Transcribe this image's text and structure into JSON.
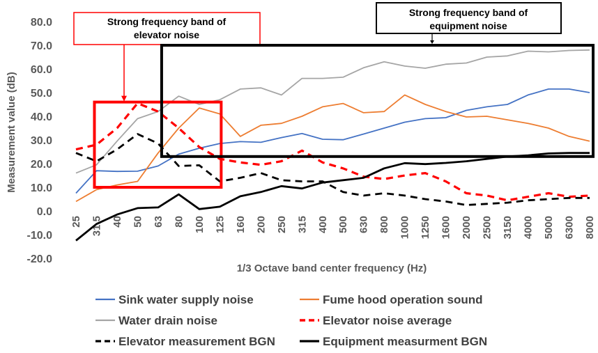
{
  "chart_data": {
    "type": "line",
    "title": "",
    "xlabel": "1/3 Octave band center frequency (Hz)",
    "ylabel": "Measurement value (dB)",
    "ylim": [
      -20,
      80
    ],
    "yticks": [
      "-20.0",
      "-10.0",
      "0.0",
      "10.0",
      "20.0",
      "30.0",
      "40.0",
      "50.0",
      "60.0",
      "70.0",
      "80.0"
    ],
    "categories": [
      "25",
      "31.5",
      "40",
      "50",
      "63",
      "80",
      "100",
      "125",
      "160",
      "200",
      "250",
      "315",
      "400",
      "500",
      "630",
      "800",
      "1000",
      "1250",
      "1600",
      "2000",
      "2500",
      "3150",
      "4000",
      "5000",
      "6300",
      "8000"
    ],
    "series": [
      {
        "name": "Sink water supply noise",
        "color": "#4472C4",
        "style": "solid",
        "values": [
          7.5,
          17,
          16.7,
          16.8,
          19,
          24,
          26.5,
          28.5,
          29.3,
          29,
          31,
          32.7,
          30.3,
          30.1,
          32.5,
          35,
          37.5,
          39,
          39.4,
          42.5,
          44,
          45,
          49,
          51.5,
          51.5,
          50
        ]
      },
      {
        "name": "Fume hood operation sound",
        "color": "#ED7D31",
        "style": "solid",
        "values": [
          4,
          9,
          11,
          12.5,
          24.5,
          35,
          43.5,
          41,
          31.5,
          36.2,
          37,
          40,
          44,
          45.4,
          41.5,
          42,
          49,
          45,
          42,
          39.7,
          40,
          38.5,
          37,
          35,
          31.5,
          29.5
        ]
      },
      {
        "name": "Water drain noise",
        "color": "#A5A5A5",
        "style": "solid",
        "values": [
          16,
          19.5,
          29.5,
          39,
          42,
          48.5,
          45,
          47,
          51.5,
          52,
          49,
          56,
          56,
          56.5,
          60.5,
          63,
          61.2,
          60.3,
          62,
          62.5,
          65,
          65.5,
          67.5,
          67.2,
          67.8,
          68
        ]
      },
      {
        "name": "Elevator noise average",
        "color": "#FF0000",
        "style": "dash-thick",
        "values": [
          26,
          28,
          35,
          45.5,
          42,
          35,
          27,
          22,
          20.5,
          19.5,
          21,
          25.5,
          20.5,
          18,
          14.5,
          13.5,
          15,
          16,
          12.5,
          7.5,
          6.5,
          4.5,
          6,
          7.5,
          6,
          6.5
        ]
      },
      {
        "name": "Elevator measurement BGN",
        "color": "#000000",
        "style": "dash",
        "values": [
          24.5,
          21,
          26,
          32.5,
          28.5,
          19,
          19.3,
          12.5,
          14,
          16,
          13,
          12.5,
          12.5,
          8,
          6.5,
          7.5,
          6.5,
          5,
          4,
          2.5,
          3,
          3.5,
          4.5,
          5,
          5.5,
          5.5
        ]
      },
      {
        "name": "Equipment measurment BGN",
        "color": "#000000",
        "style": "solid-thick",
        "values": [
          -12.5,
          -5.5,
          -1.5,
          1.2,
          1.5,
          7,
          0.8,
          1.8,
          6.2,
          8,
          10.5,
          9.5,
          12,
          13,
          14,
          18,
          20.2,
          19.8,
          20.3,
          21,
          22,
          23,
          23.5,
          24.3,
          24.5,
          24.5
        ]
      }
    ],
    "annotations": [
      {
        "text": [
          "Strong frequency band of",
          "elevator noise"
        ],
        "color": "#FF0000",
        "x_range": [
          "31.5",
          "125"
        ],
        "y_range": [
          10,
          46
        ]
      },
      {
        "text": [
          "Strong frequency band of",
          "equipment noise"
        ],
        "color": "#000000",
        "x_range": [
          "63",
          "8000"
        ],
        "y_range": [
          23,
          70
        ]
      }
    ],
    "grid": false,
    "legend": "bottom"
  }
}
